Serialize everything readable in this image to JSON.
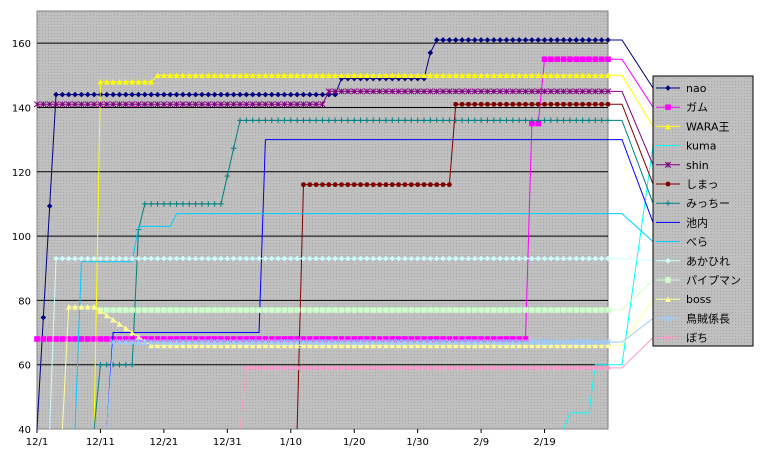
{
  "chart_data": {
    "type": "line",
    "title": "",
    "xlabel": "",
    "ylabel": "",
    "ylim": [
      40,
      170
    ],
    "yticks": [
      40,
      60,
      80,
      100,
      120,
      140,
      160
    ],
    "xlim": [
      "2005-12-01",
      "2006-03-01"
    ],
    "xticks": [
      {
        "date": "2005-12-01",
        "label": "12/1"
      },
      {
        "date": "2005-12-11",
        "label": "12/11"
      },
      {
        "date": "2005-12-21",
        "label": "12/21"
      },
      {
        "date": "2005-12-31",
        "label": "12/31"
      },
      {
        "date": "2006-01-10",
        "label": "1/10"
      },
      {
        "date": "2006-01-20",
        "label": "1/20"
      },
      {
        "date": "2006-01-30",
        "label": "1/30"
      },
      {
        "date": "2006-02-09",
        "label": "2/9"
      },
      {
        "date": "2006-02-19",
        "label": "2/19"
      }
    ],
    "grid": true,
    "plot_background": "#c0c0c0",
    "legend_position": "right",
    "series": [
      {
        "name": "nao",
        "color": "#000080",
        "marker": "diamond",
        "points": [
          [
            "2005-12-01",
            40
          ],
          [
            "2005-12-04",
            144
          ],
          [
            "2006-01-17",
            144
          ],
          [
            "2006-01-18",
            149
          ],
          [
            "2006-01-31",
            149
          ],
          [
            "2006-02-01",
            157
          ],
          [
            "2006-02-02",
            161
          ],
          [
            "2006-03-01",
            161
          ]
        ]
      },
      {
        "name": "ガム",
        "color": "#ff00ff",
        "marker": "square",
        "points": [
          [
            "2005-12-01",
            68
          ],
          [
            "2006-02-16",
            68
          ],
          [
            "2006-02-17",
            135
          ],
          [
            "2006-02-18",
            135
          ],
          [
            "2006-02-19",
            155
          ],
          [
            "2006-03-01",
            155
          ]
        ]
      },
      {
        "name": "WARA王",
        "color": "#ffff00",
        "marker": "triangle",
        "points": [
          [
            "2005-12-10",
            40
          ],
          [
            "2005-12-11",
            148
          ],
          [
            "2005-12-19",
            148
          ],
          [
            "2005-12-20",
            150
          ],
          [
            "2006-03-01",
            150
          ]
        ]
      },
      {
        "name": "kuma",
        "color": "#00ffff",
        "marker": "none",
        "points": [
          [
            "2006-02-22",
            40
          ],
          [
            "2006-02-23",
            45
          ],
          [
            "2006-02-26",
            45
          ],
          [
            "2006-02-27",
            60
          ],
          [
            "2006-03-01",
            60
          ]
        ]
      },
      {
        "name": "shin",
        "color": "#800080",
        "marker": "asterisk",
        "points": [
          [
            "2005-12-01",
            141
          ],
          [
            "2006-01-15",
            141
          ],
          [
            "2006-01-16",
            145
          ],
          [
            "2006-03-01",
            145
          ]
        ]
      },
      {
        "name": "しまっ",
        "color": "#800000",
        "marker": "circle",
        "points": [
          [
            "2006-01-11",
            40
          ],
          [
            "2006-01-12",
            116
          ],
          [
            "2006-02-04",
            116
          ],
          [
            "2006-02-05",
            141
          ],
          [
            "2006-03-01",
            141
          ]
        ]
      },
      {
        "name": "みっちー",
        "color": "#008080",
        "marker": "plus",
        "points": [
          [
            "2005-12-10",
            40
          ],
          [
            "2005-12-11",
            60
          ],
          [
            "2005-12-16",
            60
          ],
          [
            "2005-12-17",
            102
          ],
          [
            "2005-12-18",
            110
          ],
          [
            "2005-12-30",
            110
          ],
          [
            "2006-01-02",
            136
          ],
          [
            "2006-03-01",
            136
          ]
        ]
      },
      {
        "name": "池内",
        "color": "#0000ff",
        "marker": "none",
        "points": [
          [
            "2005-12-12",
            40
          ],
          [
            "2005-12-13",
            70
          ],
          [
            "2006-01-05",
            70
          ],
          [
            "2006-01-06",
            130
          ],
          [
            "2006-03-01",
            130
          ]
        ]
      },
      {
        "name": "べら",
        "color": "#00ccff",
        "marker": "none",
        "points": [
          [
            "2005-12-07",
            40
          ],
          [
            "2005-12-08",
            92
          ],
          [
            "2005-12-16",
            92
          ],
          [
            "2005-12-17",
            103
          ],
          [
            "2005-12-22",
            103
          ],
          [
            "2005-12-23",
            107
          ],
          [
            "2006-03-01",
            107
          ]
        ]
      },
      {
        "name": "あかひれ",
        "color": "#ccffff",
        "marker": "diamond",
        "points": [
          [
            "2005-12-03",
            40
          ],
          [
            "2005-12-04",
            93
          ],
          [
            "2006-03-01",
            93
          ]
        ]
      },
      {
        "name": "パイプマン",
        "color": "#ccffcc",
        "marker": "square",
        "points": [
          [
            "2005-12-11",
            77
          ],
          [
            "2006-03-01",
            77
          ]
        ]
      },
      {
        "name": "boss",
        "color": "#ffff99",
        "marker": "triangle",
        "points": [
          [
            "2005-12-05",
            40
          ],
          [
            "2005-12-06",
            78
          ],
          [
            "2005-12-10",
            78
          ],
          [
            "2005-12-19",
            66
          ],
          [
            "2006-03-01",
            66
          ]
        ]
      },
      {
        "name": "鳥賊係長",
        "color": "#99ccff",
        "marker": "asterisk",
        "points": [
          [
            "2005-12-12",
            40
          ],
          [
            "2005-12-13",
            67
          ],
          [
            "2006-03-01",
            67
          ]
        ]
      },
      {
        "name": "ぼち",
        "color": "#ff99cc",
        "marker": "circle",
        "points": [
          [
            "2006-01-02",
            40
          ],
          [
            "2006-01-03",
            59
          ],
          [
            "2006-03-01",
            59
          ]
        ]
      }
    ]
  }
}
